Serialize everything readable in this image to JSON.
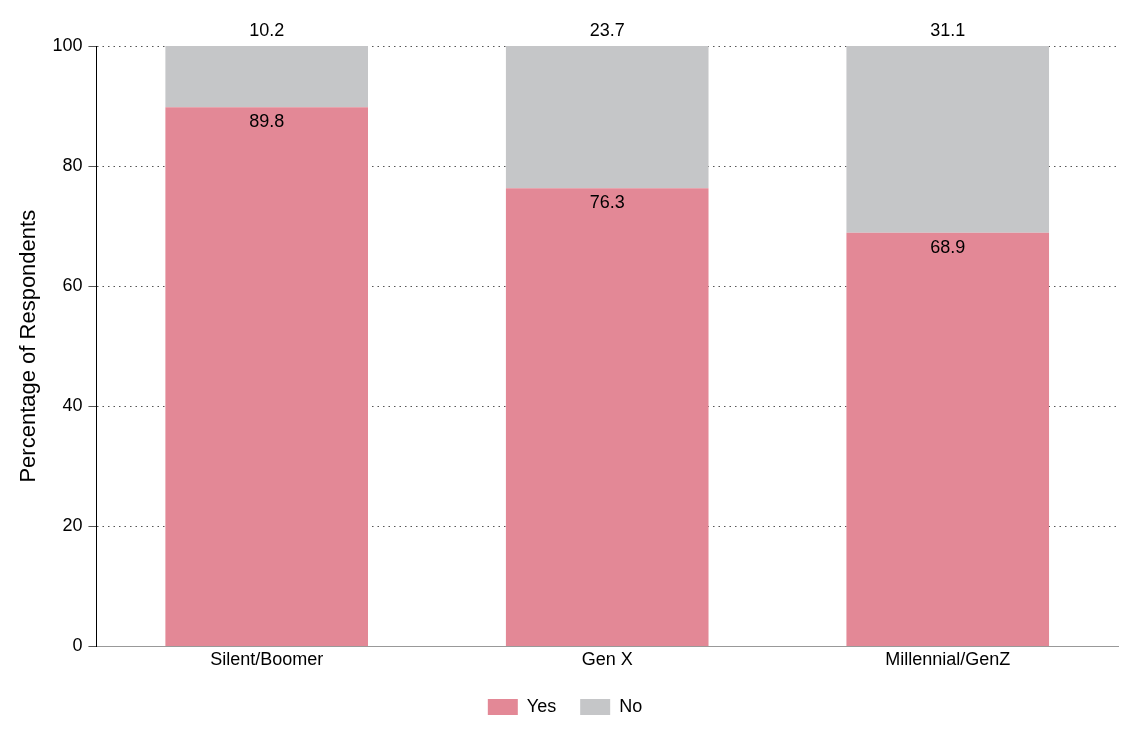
{
  "chart_data": {
    "type": "bar",
    "stacked": true,
    "ylabel": "Percentage of Respondents",
    "categories": [
      "Silent/Boomer",
      "Gen X",
      "Millennial/GenZ"
    ],
    "series": [
      {
        "name": "Yes",
        "color": "#e38896",
        "values": [
          89.8,
          76.3,
          68.9
        ]
      },
      {
        "name": "No",
        "color": "#c5c6c8",
        "values": [
          10.2,
          23.7,
          31.1
        ]
      }
    ],
    "ylim": [
      0,
      100
    ],
    "yticks": [
      0,
      20,
      40,
      60,
      80,
      100
    ],
    "grid": "y",
    "legend": "bottom",
    "data_labels": true
  }
}
